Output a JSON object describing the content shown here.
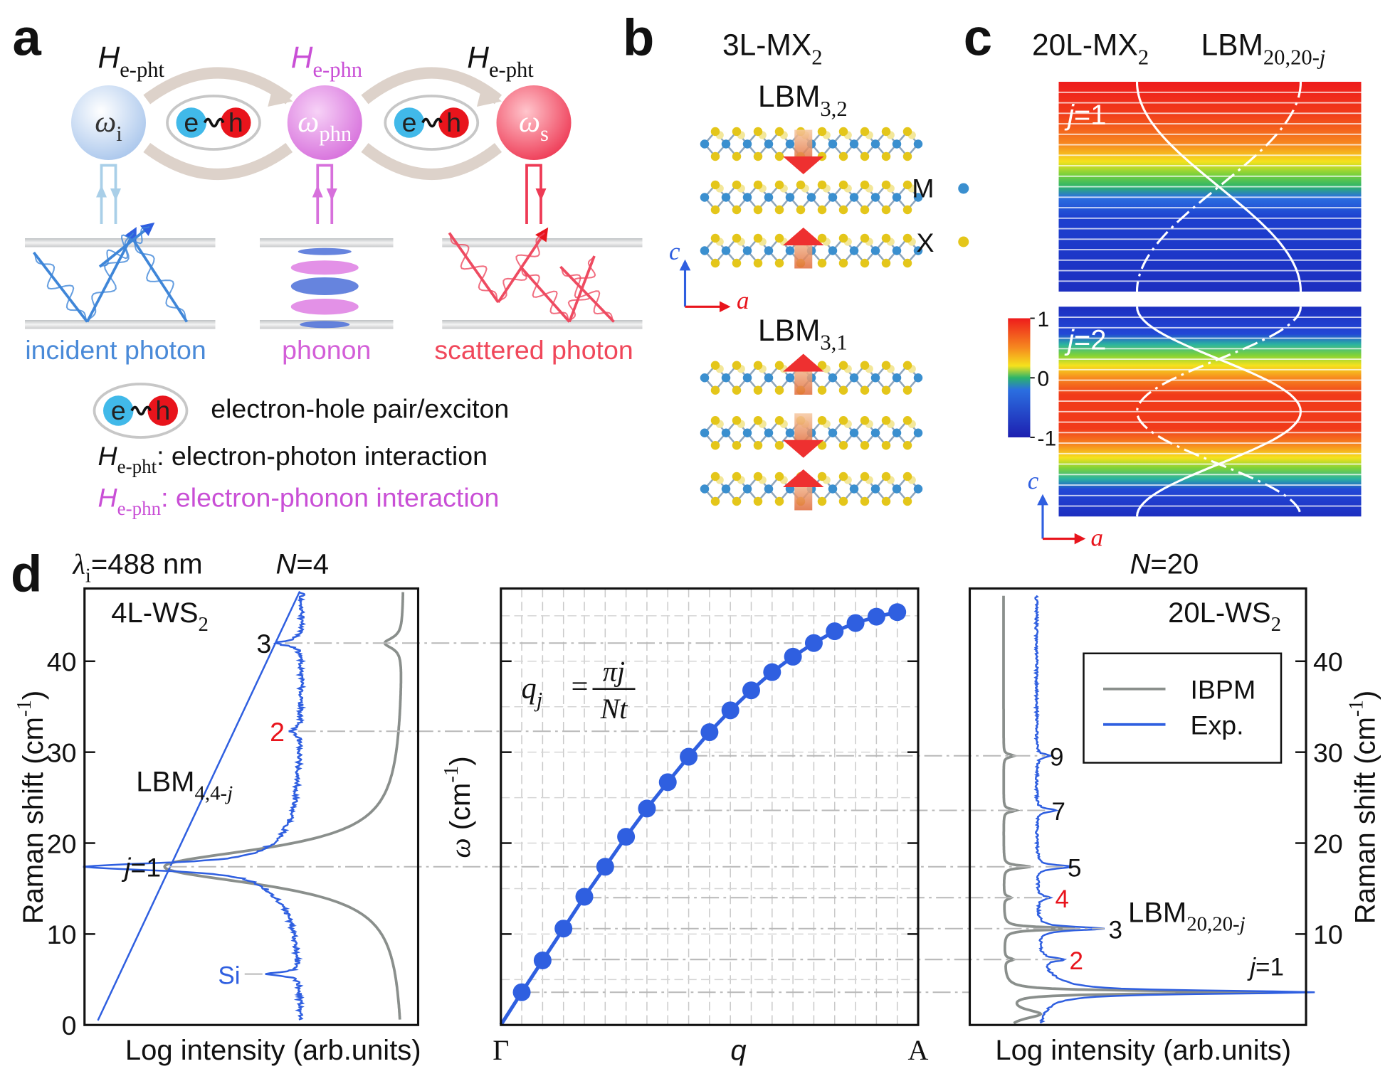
{
  "panel_a": {
    "label": "a",
    "hamiltonians": [
      {
        "symbol": "H",
        "sub": "e-pht"
      },
      {
        "symbol": "H",
        "sub": "e-phn"
      },
      {
        "symbol": "H",
        "sub": "e-pht"
      }
    ],
    "frequencies": [
      {
        "symbol": "ω",
        "sub": "i"
      },
      {
        "symbol": "ω",
        "sub": "phn"
      },
      {
        "symbol": "ω",
        "sub": "s"
      }
    ],
    "exciton": {
      "electron": "e",
      "hole": "h"
    },
    "particles": [
      "incident photon",
      "phonon",
      "scattered photon"
    ],
    "legend": {
      "exciton": "electron-hole pair/exciton",
      "e_pht": {
        "symbol": "H",
        "sub": "e-pht",
        "text": ": electron-photon interaction"
      },
      "e_phn": {
        "symbol": "H",
        "sub": "e-phn",
        "text": ": electron-phonon interaction"
      }
    }
  },
  "panel_b": {
    "label": "b",
    "title": {
      "main": "3L-MX",
      "sub": "2"
    },
    "modes": [
      {
        "main": "LBM",
        "sub": "3,2"
      },
      {
        "main": "LBM",
        "sub": "3,1"
      }
    ],
    "atoms": [
      "M",
      "X"
    ],
    "axes": {
      "c": "c",
      "a": "a"
    }
  },
  "panel_c": {
    "label": "c",
    "title": {
      "main": "20L-MX",
      "sub": "2"
    },
    "mode": {
      "main": "LBM",
      "sub": "20,20-",
      "italic": "j"
    },
    "modes": [
      {
        "j": "j",
        "eq": "=1"
      },
      {
        "j": "j",
        "eq": "=2"
      }
    ],
    "colorbar": {
      "lim": [
        -1,
        1
      ],
      "ticks": [
        1,
        0,
        -1
      ]
    },
    "axes": {
      "c": "c",
      "a": "a"
    }
  },
  "panel_d": {
    "label": "d",
    "wavelength": {
      "symbol": "λ",
      "sub": "i",
      "text": "=488 nm"
    },
    "n_left": {
      "symbol": "N",
      "text": "=4"
    },
    "n_right": {
      "symbol": "N",
      "text": "=20"
    },
    "ylim": [
      0,
      48
    ],
    "left": {
      "sample": {
        "main": "4L-WS",
        "sub": "2"
      },
      "mode": {
        "main": "LBM",
        "sub": "4,4-",
        "italic": "j"
      },
      "yticks": [
        0,
        10,
        20,
        30,
        40
      ],
      "xlabel": "Log intensity (arb.units)",
      "ylabel": {
        "main": "Raman shift (cm",
        "sup": "-1",
        "end": ")"
      },
      "peaks": [
        {
          "label": "3",
          "shift": 42.0
        },
        {
          "label": "2",
          "shift": 32.3,
          "color": "#e8141c"
        },
        {
          "j": "j",
          "label": "=1",
          "shift": 17.4
        }
      ],
      "si": {
        "label": "Si",
        "shift": 5.6
      }
    },
    "middle": {
      "ylabel": {
        "symbol": "ω",
        "text": " (cm",
        "sup": "-1",
        "end": ")"
      },
      "xlabels": [
        "Γ",
        "q",
        "A"
      ],
      "equation": {
        "lhs": "q",
        "lhs_sub": "j",
        "eq": "=",
        "num": "πj",
        "den": "Nt"
      },
      "values": [
        3.6,
        7.1,
        10.6,
        14.1,
        17.4,
        20.7,
        23.8,
        26.7,
        29.5,
        32.2,
        34.6,
        36.8,
        38.8,
        40.5,
        42.0,
        43.3,
        44.2,
        44.9,
        45.4
      ]
    },
    "right": {
      "sample": {
        "main": "20L-WS",
        "sub": "2"
      },
      "mode": {
        "main": "LBM",
        "sub": "20,20-",
        "italic": "j"
      },
      "yticks": [
        10,
        20,
        30,
        40
      ],
      "xlabel": "Log intensity (arb.units)",
      "ylabel": {
        "main": "Raman shift (cm",
        "sup": "-1",
        "end": ")"
      },
      "legend": [
        {
          "name": "IBPM",
          "color": "#8a8f8c"
        },
        {
          "name": "Exp.",
          "color": "#2f5fe0"
        }
      ],
      "peaks": [
        {
          "j": "j",
          "label": "=1",
          "shift": 3.6
        },
        {
          "label": "2",
          "shift": 7.2,
          "color": "#e8141c"
        },
        {
          "label": "3",
          "shift": 10.6
        },
        {
          "label": "4",
          "shift": 14.0,
          "color": "#e8141c"
        },
        {
          "label": "5",
          "shift": 17.4
        },
        {
          "label": "7",
          "shift": 23.6
        },
        {
          "label": "9",
          "shift": 29.6
        }
      ]
    }
  }
}
